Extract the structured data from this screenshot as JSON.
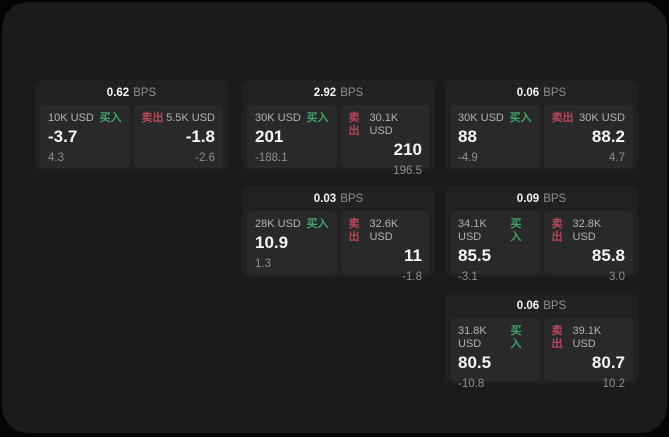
{
  "labels": {
    "bps_unit": "BPS",
    "buy": "买入",
    "sell": "卖出"
  },
  "colors": {
    "page-bg": "#1b1b1b",
    "card-bg": "#212121",
    "panel-bg": "#292929",
    "buy-green": "#3fa46a",
    "sell-red": "#b8475a"
  },
  "cards": [
    {
      "bps": "0.62",
      "buy": {
        "amount": "10K USD",
        "price": "-3.7",
        "delta": "4.3"
      },
      "sell": {
        "amount": "5.5K USD",
        "price": "-1.8",
        "delta": "-2.6"
      }
    },
    {
      "bps": "2.92",
      "buy": {
        "amount": "30K USD",
        "price": "201",
        "delta": "-188.1"
      },
      "sell": {
        "amount": "30.1K USD",
        "price": "210",
        "delta": "196.5"
      }
    },
    {
      "bps": "0.06",
      "buy": {
        "amount": "30K USD",
        "price": "88",
        "delta": "-4.9"
      },
      "sell": {
        "amount": "30K USD",
        "price": "88.2",
        "delta": "4.7"
      }
    },
    {
      "bps": "0.03",
      "buy": {
        "amount": "28K USD",
        "price": "10.9",
        "delta": "1.3"
      },
      "sell": {
        "amount": "32.6K USD",
        "price": "11",
        "delta": "-1.8"
      }
    },
    {
      "bps": "0.09",
      "buy": {
        "amount": "34.1K USD",
        "price": "85.5",
        "delta": "-3.1"
      },
      "sell": {
        "amount": "32.8K USD",
        "price": "85.8",
        "delta": "3.0"
      }
    },
    {
      "bps": "0.06",
      "buy": {
        "amount": "31.8K USD",
        "price": "80.5",
        "delta": "-10.8"
      },
      "sell": {
        "amount": "39.1K USD",
        "price": "80.7",
        "delta": "10.2"
      }
    }
  ]
}
